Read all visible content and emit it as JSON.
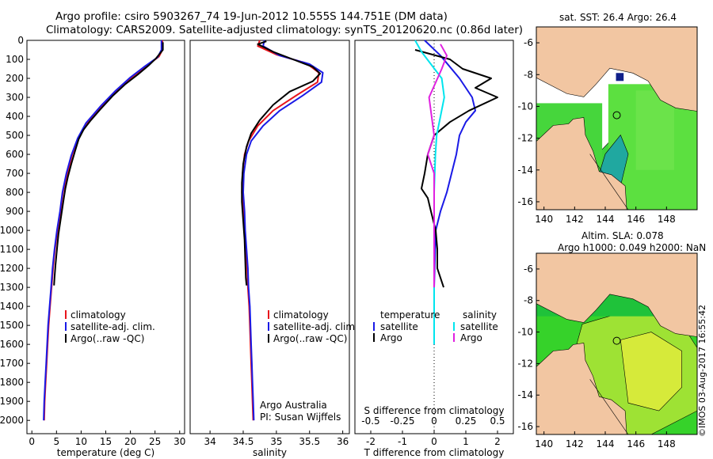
{
  "header": {
    "title_line1": "Argo profile: csiro 5903267_74 19-Jun-2012 10.555S 144.751E (DM data)",
    "title_line2": "Climatology: CARS2009. Satellite-adjusted climatology: synTS_20120620.nc (0.86d later)"
  },
  "stamp": "©IMOS 03-Aug-2017 16:55:42",
  "colors": {
    "climatology": "#e8141c",
    "satellite": "#1a1ae6",
    "argo": "#000000",
    "sat_salinity": "#00e5ee",
    "argo_salinity": "#e020e0",
    "land": "#f2c6a2",
    "ocean_green": "#2ecc1e"
  },
  "chart_data": [
    {
      "id": "temperature",
      "type": "line",
      "xlabel": "temperature (deg C)",
      "ylabel": "",
      "xlim": [
        -1,
        31
      ],
      "ylim": [
        2070,
        0
      ],
      "xticks": [
        0,
        5,
        10,
        15,
        20,
        25,
        30
      ],
      "yticks": [
        0,
        100,
        200,
        300,
        400,
        500,
        600,
        700,
        800,
        900,
        1000,
        1100,
        1200,
        1300,
        1400,
        1500,
        1600,
        1700,
        1800,
        1900,
        2000
      ],
      "legend": [
        "climatology",
        "satellite-adj. clim.",
        "Argo(..raw -QC)"
      ],
      "series": [
        {
          "name": "climatology",
          "color": "#e8141c",
          "points": [
            [
              26.5,
              0
            ],
            [
              26.5,
              50
            ],
            [
              25.8,
              85
            ],
            [
              23.5,
              130
            ],
            [
              20.5,
              190
            ],
            [
              17.5,
              260
            ],
            [
              14.5,
              340
            ],
            [
              11.5,
              430
            ],
            [
              9.5,
              510
            ],
            [
              8.2,
              600
            ],
            [
              7.2,
              700
            ],
            [
              6.3,
              800
            ],
            [
              5.8,
              900
            ],
            [
              5.2,
              1000
            ],
            [
              4.7,
              1100
            ],
            [
              4.3,
              1200
            ],
            [
              4.0,
              1300
            ],
            [
              3.7,
              1400
            ],
            [
              3.4,
              1500
            ],
            [
              3.2,
              1600
            ],
            [
              3.0,
              1700
            ],
            [
              2.8,
              1800
            ],
            [
              2.6,
              1900
            ],
            [
              2.5,
              2000
            ]
          ]
        },
        {
          "name": "satellite-adj. clim.",
          "color": "#1a1ae6",
          "points": [
            [
              26.3,
              0
            ],
            [
              26.3,
              50
            ],
            [
              25.5,
              90
            ],
            [
              23.0,
              135
            ],
            [
              20.0,
              195
            ],
            [
              17.0,
              265
            ],
            [
              14.0,
              345
            ],
            [
              11.0,
              435
            ],
            [
              9.3,
              515
            ],
            [
              8.0,
              605
            ],
            [
              7.0,
              700
            ],
            [
              6.2,
              800
            ],
            [
              5.7,
              900
            ],
            [
              5.1,
              1000
            ],
            [
              4.6,
              1100
            ],
            [
              4.2,
              1200
            ],
            [
              3.9,
              1300
            ],
            [
              3.6,
              1400
            ],
            [
              3.3,
              1500
            ],
            [
              3.1,
              1600
            ],
            [
              2.9,
              1700
            ],
            [
              2.7,
              1800
            ],
            [
              2.5,
              1900
            ],
            [
              2.4,
              2000
            ]
          ]
        },
        {
          "name": "Argo(..raw -QC)",
          "color": "#000000",
          "points": [
            [
              26.6,
              10
            ],
            [
              26.6,
              50
            ],
            [
              25.2,
              95
            ],
            [
              23.8,
              130
            ],
            [
              21.5,
              180
            ],
            [
              19.0,
              230
            ],
            [
              16.5,
              290
            ],
            [
              14.0,
              360
            ],
            [
              12.0,
              420
            ],
            [
              10.5,
              470
            ],
            [
              9.5,
              520
            ],
            [
              8.8,
              580
            ],
            [
              8.0,
              650
            ],
            [
              7.3,
              720
            ],
            [
              6.8,
              780
            ],
            [
              6.5,
              830
            ],
            [
              6.2,
              880
            ],
            [
              5.8,
              950
            ],
            [
              5.4,
              1020
            ],
            [
              5.1,
              1100
            ],
            [
              4.8,
              1180
            ],
            [
              4.6,
              1250
            ],
            [
              4.5,
              1290
            ]
          ]
        }
      ]
    },
    {
      "id": "salinity",
      "type": "line",
      "xlabel": "salinity",
      "ylabel": "",
      "xlim": [
        33.7,
        36.1
      ],
      "ylim": [
        2070,
        0
      ],
      "xticks": [
        34,
        34.5,
        35,
        35.5,
        36
      ],
      "legend": [
        "climatology",
        "satellite-adj. clim.",
        "Argo(..raw -QC)"
      ],
      "annotation": [
        "Argo Australia",
        "PI: Susan Wijffels"
      ],
      "series": [
        {
          "name": "climatology",
          "color": "#e8141c",
          "points": [
            [
              34.75,
              0
            ],
            [
              34.72,
              30
            ],
            [
              35.0,
              75
            ],
            [
              35.45,
              120
            ],
            [
              35.64,
              170
            ],
            [
              35.62,
              220
            ],
            [
              35.3,
              290
            ],
            [
              34.95,
              370
            ],
            [
              34.72,
              450
            ],
            [
              34.58,
              530
            ],
            [
              34.52,
              600
            ],
            [
              34.49,
              700
            ],
            [
              34.48,
              800
            ],
            [
              34.5,
              900
            ],
            [
              34.52,
              1000
            ],
            [
              34.54,
              1100
            ],
            [
              34.56,
              1200
            ],
            [
              34.57,
              1300
            ],
            [
              34.59,
              1400
            ],
            [
              34.6,
              1500
            ],
            [
              34.61,
              1600
            ],
            [
              34.62,
              1700
            ],
            [
              34.63,
              1800
            ],
            [
              34.64,
              1900
            ],
            [
              34.65,
              2000
            ]
          ]
        },
        {
          "name": "satellite-adj. clim.",
          "color": "#1a1ae6",
          "points": [
            [
              34.82,
              0
            ],
            [
              34.8,
              30
            ],
            [
              35.05,
              80
            ],
            [
              35.5,
              125
            ],
            [
              35.7,
              170
            ],
            [
              35.68,
              220
            ],
            [
              35.4,
              290
            ],
            [
              35.05,
              370
            ],
            [
              34.8,
              450
            ],
            [
              34.62,
              530
            ],
            [
              34.55,
              600
            ],
            [
              34.51,
              700
            ],
            [
              34.5,
              800
            ],
            [
              34.52,
              900
            ],
            [
              34.53,
              1000
            ],
            [
              34.55,
              1100
            ],
            [
              34.57,
              1200
            ],
            [
              34.58,
              1300
            ],
            [
              34.6,
              1400
            ],
            [
              34.61,
              1500
            ],
            [
              34.62,
              1600
            ],
            [
              34.63,
              1700
            ],
            [
              34.64,
              1800
            ],
            [
              34.65,
              1900
            ],
            [
              34.66,
              2000
            ]
          ]
        },
        {
          "name": "Argo(..raw -QC)",
          "color": "#000000",
          "points": [
            [
              34.85,
              5
            ],
            [
              34.72,
              20
            ],
            [
              34.95,
              60
            ],
            [
              35.25,
              100
            ],
            [
              35.55,
              140
            ],
            [
              35.66,
              175
            ],
            [
              35.55,
              215
            ],
            [
              35.2,
              270
            ],
            [
              34.95,
              340
            ],
            [
              34.75,
              420
            ],
            [
              34.62,
              490
            ],
            [
              34.55,
              560
            ],
            [
              34.5,
              650
            ],
            [
              34.48,
              750
            ],
            [
              34.48,
              850
            ],
            [
              34.5,
              950
            ],
            [
              34.52,
              1050
            ],
            [
              34.53,
              1150
            ],
            [
              34.54,
              1250
            ],
            [
              34.55,
              1290
            ]
          ]
        }
      ]
    },
    {
      "id": "differences",
      "type": "line",
      "xlabel": "T difference from climatology",
      "xlabel_top": "S difference from climatology",
      "xlim": [
        -2.5,
        2.5
      ],
      "ylim": [
        2070,
        0
      ],
      "xticks": [
        -2,
        -1,
        0,
        1,
        2
      ],
      "xticks_s": [
        -0.5,
        -0.25,
        0,
        0.25,
        0.5
      ],
      "legend_t": {
        "title": "temperature",
        "items": [
          "satellite",
          "Argo"
        ]
      },
      "legend_s": {
        "title": "salinity",
        "items": [
          "satellite",
          "Argo"
        ]
      },
      "series": [
        {
          "name": "T satellite",
          "color": "#1a1ae6",
          "points": [
            [
              -0.3,
              0
            ],
            [
              0.2,
              80
            ],
            [
              0.8,
              200
            ],
            [
              1.2,
              300
            ],
            [
              1.3,
              370
            ],
            [
              1.0,
              430
            ],
            [
              0.8,
              500
            ],
            [
              0.7,
              600
            ],
            [
              0.55,
              700
            ],
            [
              0.4,
              800
            ],
            [
              0.2,
              900
            ],
            [
              0.05,
              1000
            ],
            [
              0.0,
              1300
            ],
            [
              0.0,
              1600
            ]
          ]
        },
        {
          "name": "T Argo",
          "color": "#000000",
          "points": [
            [
              -0.6,
              50
            ],
            [
              0.5,
              100
            ],
            [
              0.9,
              150
            ],
            [
              1.8,
              200
            ],
            [
              1.3,
              250
            ],
            [
              2.0,
              300
            ],
            [
              1.1,
              370
            ],
            [
              0.5,
              430
            ],
            [
              0.0,
              500
            ],
            [
              -0.2,
              600
            ],
            [
              -0.3,
              700
            ],
            [
              -0.4,
              780
            ],
            [
              -0.2,
              830
            ],
            [
              -0.1,
              900
            ],
            [
              0.05,
              1000
            ],
            [
              0.1,
              1100
            ],
            [
              0.1,
              1200
            ],
            [
              0.3,
              1300
            ]
          ]
        },
        {
          "name": "S satellite",
          "color": "#00e5ee",
          "points": [
            [
              -0.15,
              0
            ],
            [
              -0.1,
              60
            ],
            [
              0.06,
              200
            ],
            [
              0.08,
              300
            ],
            [
              0.05,
              400
            ],
            [
              0.02,
              500
            ],
            [
              0.01,
              600
            ],
            [
              0.0,
              800
            ],
            [
              0.0,
              1600
            ]
          ]
        },
        {
          "name": "S Argo",
          "color": "#e020e0",
          "points": [
            [
              0.05,
              20
            ],
            [
              0.1,
              80
            ],
            [
              0.06,
              150
            ],
            [
              -0.04,
              300
            ],
            [
              -0.02,
              400
            ],
            [
              0.0,
              500
            ],
            [
              -0.05,
              600
            ],
            [
              0.0,
              700
            ],
            [
              0.0,
              1300
            ]
          ]
        }
      ]
    },
    {
      "id": "sst_map",
      "type": "heatmap",
      "title": "sat. SST: 26.4  Argo: 26.4",
      "xlim": [
        139.5,
        150
      ],
      "ylim": [
        -16.5,
        -5
      ],
      "xticks": [
        140,
        142,
        144,
        146,
        148
      ],
      "yticks": [
        -6,
        -8,
        -10,
        -12,
        -14,
        -16
      ],
      "float_position": [
        144.751,
        -10.555
      ]
    },
    {
      "id": "sla_map",
      "type": "heatmap",
      "title": "Altim. SLA: 0.078",
      "subtitle": "Argo h1000: 0.049  h2000: NaN",
      "xlim": [
        139.5,
        150
      ],
      "ylim": [
        -16.5,
        -5
      ],
      "xticks": [
        140,
        142,
        144,
        146,
        148
      ],
      "yticks": [
        -6,
        -8,
        -10,
        -12,
        -14,
        -16
      ],
      "float_position": [
        144.751,
        -10.555
      ]
    }
  ]
}
